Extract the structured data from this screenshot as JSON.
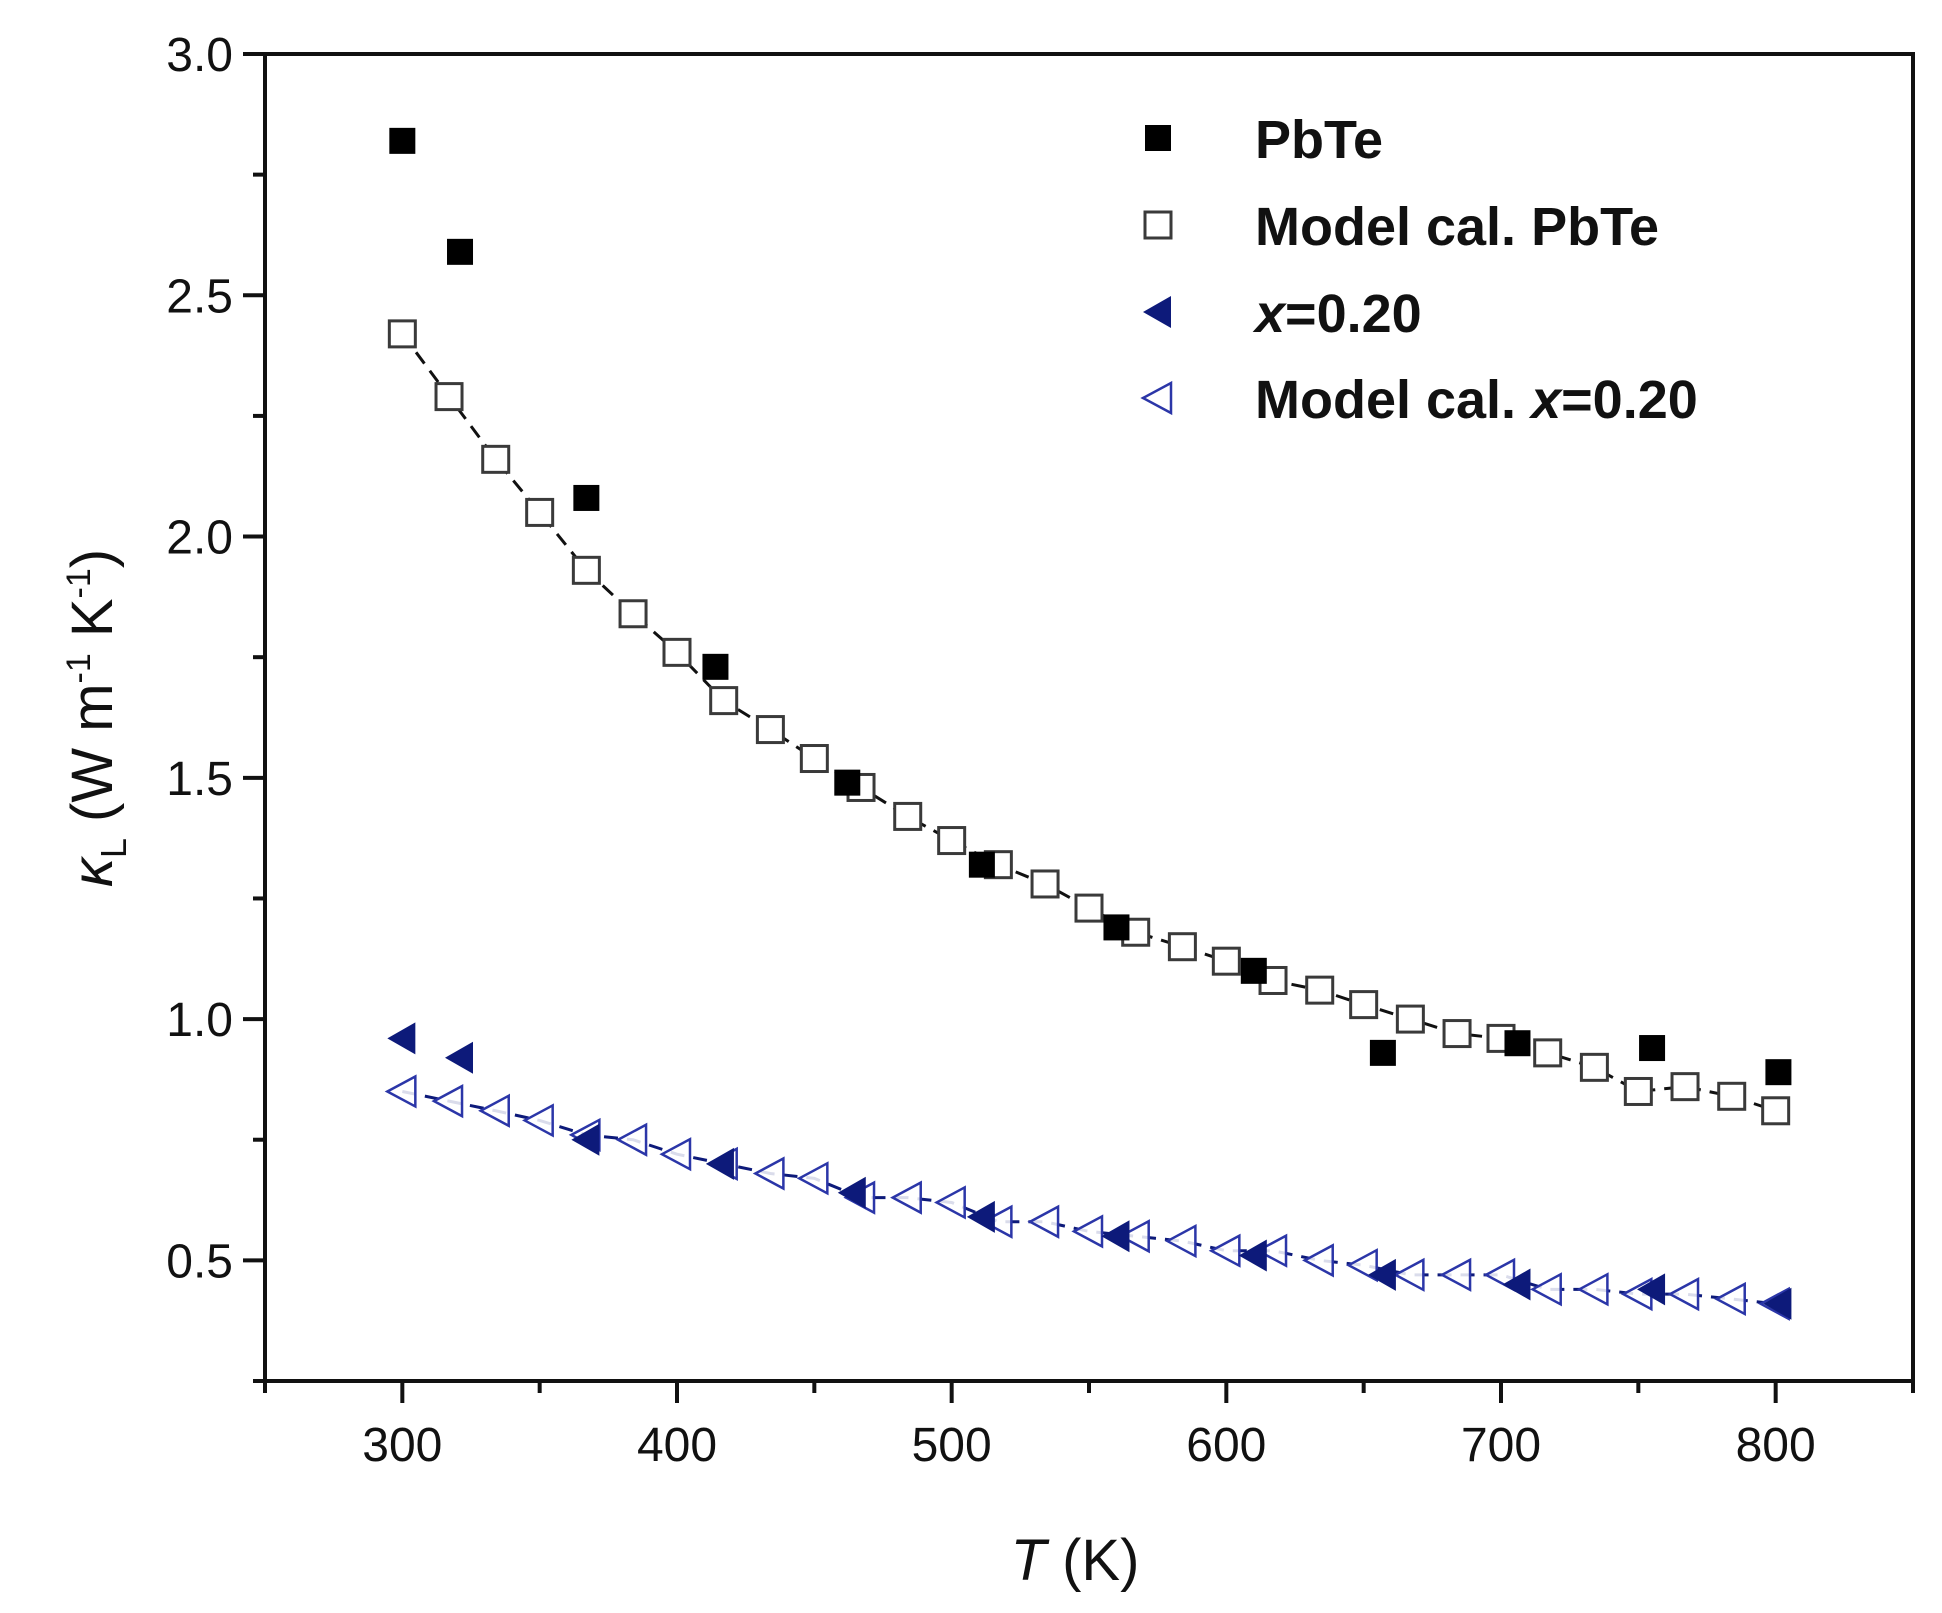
{
  "chart_data": {
    "type": "scatter",
    "title": "",
    "xlabel": {
      "italic": "T",
      "rest": " (K)"
    },
    "ylabel": {
      "kappa": "κ",
      "sub": "L",
      "rest": " (W m",
      "exp1": "-1",
      "k": " K",
      "exp2": "-1",
      "close": ")"
    },
    "xlim": [
      250,
      850
    ],
    "ylim": [
      0.25,
      3.0
    ],
    "xticks": [
      300,
      400,
      500,
      600,
      700,
      800
    ],
    "xtick_labels": [
      "300",
      "400",
      "500",
      "600",
      "700",
      "800"
    ],
    "yticks": [
      0.5,
      1.0,
      1.5,
      2.0,
      2.5,
      3.0
    ],
    "ytick_labels": [
      "0.5",
      "1.0",
      "1.5",
      "2.0",
      "2.5",
      "3.0"
    ],
    "grid": false,
    "legend_position": "top-right",
    "series": [
      {
        "name": "PbTe",
        "marker": "filled-square",
        "color": "#000000",
        "x": [
          300,
          321,
          367,
          414,
          462,
          511,
          560,
          610,
          657,
          706,
          755,
          801
        ],
        "y": [
          2.82,
          2.59,
          2.08,
          1.73,
          1.49,
          1.32,
          1.19,
          1.1,
          0.93,
          0.95,
          0.94,
          0.89
        ]
      },
      {
        "name": "Model cal. PbTe",
        "marker": "open-square",
        "color": "#000000",
        "fit_line": true,
        "x": [
          300,
          317,
          334,
          350,
          367,
          384,
          400,
          417,
          434,
          450,
          467,
          484,
          500,
          517,
          534,
          550,
          567,
          584,
          600,
          617,
          634,
          650,
          667,
          684,
          700,
          717,
          734,
          750,
          767,
          784,
          800
        ],
        "y": [
          2.42,
          2.29,
          2.16,
          2.05,
          1.93,
          1.84,
          1.76,
          1.66,
          1.6,
          1.54,
          1.48,
          1.42,
          1.37,
          1.32,
          1.28,
          1.23,
          1.18,
          1.15,
          1.12,
          1.08,
          1.06,
          1.03,
          1.0,
          0.97,
          0.96,
          0.93,
          0.9,
          0.85,
          0.86,
          0.84,
          0.81
        ]
      },
      {
        "name": "x=0.20",
        "label_italic": "x",
        "label_rest": "=0.20",
        "marker": "filled-triangle-left",
        "color": "#0d1a7a",
        "x": [
          300,
          321,
          367,
          416,
          464,
          511,
          560,
          610,
          657,
          706,
          755,
          801
        ],
        "y": [
          0.96,
          0.92,
          0.75,
          0.7,
          0.64,
          0.59,
          0.55,
          0.51,
          0.47,
          0.45,
          0.44,
          0.41
        ]
      },
      {
        "name": "Model cal. x=0.20",
        "label_prefix": "Model cal. ",
        "label_italic": "x",
        "label_rest": "=0.20",
        "marker": "open-triangle-left",
        "color": "#2b36a8",
        "fit_line": true,
        "x": [
          300,
          317,
          334,
          350,
          367,
          384,
          400,
          417,
          434,
          450,
          467,
          484,
          500,
          517,
          534,
          550,
          567,
          584,
          600,
          617,
          634,
          650,
          667,
          684,
          700,
          717,
          734,
          750,
          767,
          784,
          800
        ],
        "y": [
          0.85,
          0.83,
          0.81,
          0.79,
          0.76,
          0.75,
          0.72,
          0.7,
          0.68,
          0.67,
          0.63,
          0.63,
          0.62,
          0.58,
          0.58,
          0.56,
          0.55,
          0.54,
          0.52,
          0.52,
          0.5,
          0.49,
          0.47,
          0.47,
          0.47,
          0.44,
          0.44,
          0.43,
          0.43,
          0.42,
          0.41
        ]
      }
    ]
  }
}
